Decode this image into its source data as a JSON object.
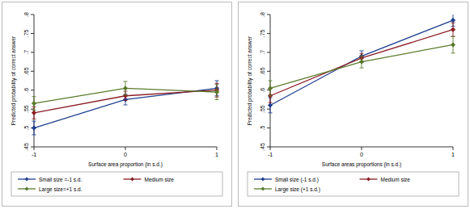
{
  "chart_data": [
    {
      "type": "line",
      "x_label": "Surface area proportion (in s.d.)",
      "y_label": "Predicted probability of correct answer",
      "x": [
        -1,
        0,
        1
      ],
      "xlim": [
        -1,
        1
      ],
      "xticks": [
        -1,
        0,
        1
      ],
      "ylim": [
        0.45,
        0.8
      ],
      "yticks": [
        {
          "value": 0.45,
          "label": ".45"
        },
        {
          "value": 0.5,
          "label": ".5"
        },
        {
          "value": 0.55,
          "label": ".55"
        },
        {
          "value": 0.6,
          "label": ".6"
        },
        {
          "value": 0.65,
          "label": ".65"
        },
        {
          "value": 0.7,
          "label": ".7"
        },
        {
          "value": 0.75,
          "label": ".75"
        },
        {
          "value": 0.8,
          "label": ".8"
        }
      ],
      "legend": "bottom",
      "series": [
        {
          "name": "Small size =-1 s.d.",
          "color": "#1f3f8f",
          "marker": "diamond",
          "values": [
            0.5,
            0.575,
            0.605
          ],
          "errors": [
            0.018,
            0.014,
            0.02
          ]
        },
        {
          "name": "Medium size",
          "color": "#8c1c24",
          "marker": "diamond",
          "values": [
            0.54,
            0.585,
            0.6
          ],
          "errors": [
            0.016,
            0.012,
            0.018
          ]
        },
        {
          "name": "Large size=+1 s.d.",
          "color": "#5b7a2c",
          "marker": "diamond",
          "values": [
            0.565,
            0.605,
            0.595
          ],
          "errors": [
            0.018,
            0.018,
            0.02
          ]
        }
      ]
    },
    {
      "type": "line",
      "x_label": "Surface areas proportions (in s.d.)",
      "y_label": "Predicted probability of correct answer",
      "x": [
        -1,
        0,
        1
      ],
      "xlim": [
        -1,
        1
      ],
      "xticks": [
        -1,
        0,
        1
      ],
      "ylim": [
        0.45,
        0.8
      ],
      "yticks": [
        {
          "value": 0.45,
          "label": ".45"
        },
        {
          "value": 0.5,
          "label": ".5"
        },
        {
          "value": 0.55,
          "label": ".55"
        },
        {
          "value": 0.6,
          "label": ".6"
        },
        {
          "value": 0.65,
          "label": ".65"
        },
        {
          "value": 0.7,
          "label": ".7"
        },
        {
          "value": 0.75,
          "label": ".75"
        },
        {
          "value": 0.8,
          "label": ".8"
        }
      ],
      "legend": "bottom",
      "series": [
        {
          "name": "Small size (-1 s.d.)",
          "color": "#1f3f8f",
          "marker": "diamond",
          "values": [
            0.56,
            0.69,
            0.785
          ],
          "errors": [
            0.02,
            0.014,
            0.016
          ]
        },
        {
          "name": "Medium size",
          "color": "#8c1c24",
          "marker": "diamond",
          "values": [
            0.585,
            0.685,
            0.76
          ],
          "errors": [
            0.018,
            0.012,
            0.018
          ]
        },
        {
          "name": "Large size (+1 s.d.)",
          "color": "#5b7a2c",
          "marker": "diamond",
          "values": [
            0.605,
            0.675,
            0.72
          ],
          "errors": [
            0.02,
            0.016,
            0.022
          ]
        }
      ]
    }
  ]
}
